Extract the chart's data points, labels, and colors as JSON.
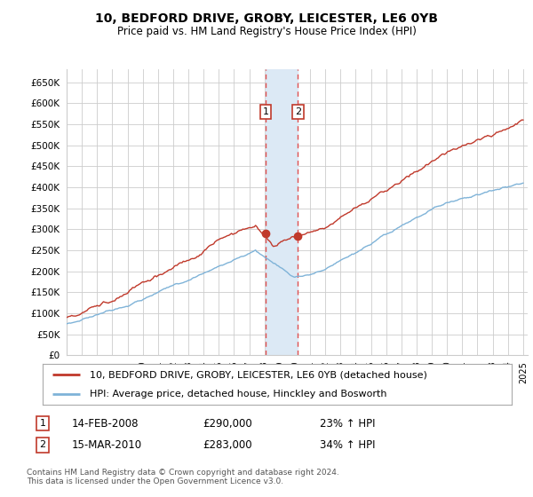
{
  "title": "10, BEDFORD DRIVE, GROBY, LEICESTER, LE6 0YB",
  "subtitle": "Price paid vs. HM Land Registry's House Price Index (HPI)",
  "ylabel_ticks": [
    "£0",
    "£50K",
    "£100K",
    "£150K",
    "£200K",
    "£250K",
    "£300K",
    "£350K",
    "£400K",
    "£450K",
    "£500K",
    "£550K",
    "£600K",
    "£650K"
  ],
  "ytick_values": [
    0,
    50000,
    100000,
    150000,
    200000,
    250000,
    300000,
    350000,
    400000,
    450000,
    500000,
    550000,
    600000,
    650000
  ],
  "legend_line1": "10, BEDFORD DRIVE, GROBY, LEICESTER, LE6 0YB (detached house)",
  "legend_line2": "HPI: Average price, detached house, Hinckley and Bosworth",
  "transaction1_date": "14-FEB-2008",
  "transaction1_price": "£290,000",
  "transaction1_hpi": "23% ↑ HPI",
  "transaction1_price_val": 290000,
  "transaction1_year": 2008.083,
  "transaction2_date": "15-MAR-2010",
  "transaction2_price": "£283,000",
  "transaction2_hpi": "34% ↑ HPI",
  "transaction2_price_val": 283000,
  "transaction2_year": 2010.208,
  "footnote": "Contains HM Land Registry data © Crown copyright and database right 2024.\nThis data is licensed under the Open Government Licence v3.0.",
  "line_color_red": "#c0392b",
  "line_color_blue": "#7fb3d8",
  "highlight_color": "#dce9f5",
  "dashed_line_color": "#e05050",
  "background_color": "#ffffff",
  "grid_color": "#cccccc",
  "label_box_color": "#c0392b",
  "ylim_max": 680000,
  "x_start_year": 1995,
  "x_end_year": 2025
}
